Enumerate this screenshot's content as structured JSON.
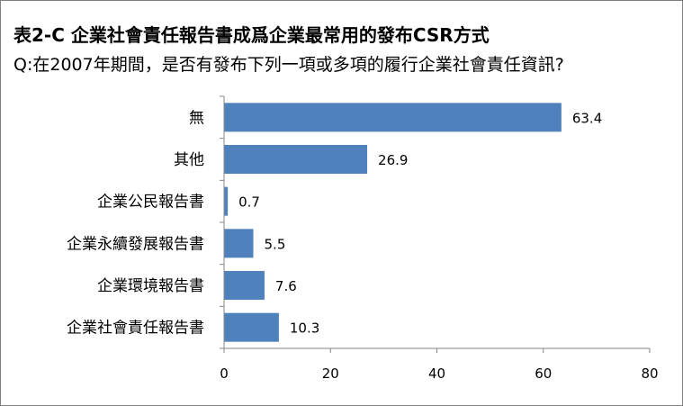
{
  "chart_data": {
    "type": "bar",
    "orientation": "horizontal",
    "title": "表2-C 企業社會責任報告書成爲企業最常用的發布CSR方式",
    "subtitle": "Q:在2007年期間，是否有發布下列一項或多項的履行企業社會責任資訊?",
    "categories": [
      "無",
      "其他",
      "企業公民報告書",
      "企業永續發展報告書",
      "企業環境報告書",
      "企業社會責任報告書"
    ],
    "values": [
      63.4,
      26.9,
      0.7,
      5.5,
      7.6,
      10.3
    ],
    "value_labels": [
      "63.4",
      "26.9",
      "0.7",
      "5.5",
      "7.6",
      "10.3"
    ],
    "xlim": [
      0,
      80
    ],
    "xticks": [
      "0",
      "20",
      "40",
      "60",
      "80"
    ],
    "xtick_values": [
      0,
      20,
      40,
      60,
      80
    ],
    "grid": false,
    "legend": "none",
    "bar_color": "#4f81bd",
    "xlabel": "",
    "ylabel": ""
  }
}
